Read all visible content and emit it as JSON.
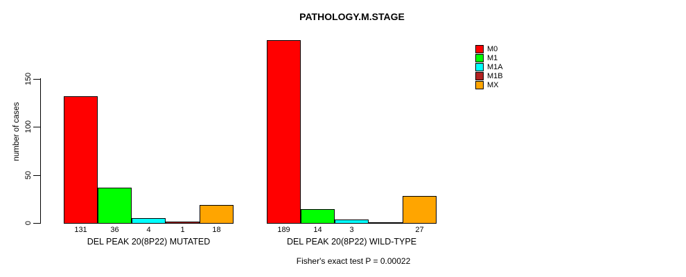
{
  "chart_data": {
    "type": "bar",
    "title": "PATHOLOGY.M.STAGE",
    "xlabel": "",
    "ylabel": "number of cases",
    "yticks": [
      0,
      50,
      100,
      150
    ],
    "ylim": [
      0,
      195
    ],
    "grid": false,
    "legend_position": "right",
    "legend": [
      {
        "name": "M0",
        "color": "#FF0000"
      },
      {
        "name": "M1",
        "color": "#00FF00"
      },
      {
        "name": "M1A",
        "color": "#00FFFF"
      },
      {
        "name": "M1B",
        "color": "#B22222"
      },
      {
        "name": "MX",
        "color": "#FFA500"
      }
    ],
    "categories": [
      "M0",
      "M1",
      "M1A",
      "M1B",
      "MX"
    ],
    "groups": [
      {
        "label": "DEL PEAK 20(8P22) MUTATED",
        "values": [
          131,
          36,
          4,
          1,
          18
        ]
      },
      {
        "label": "DEL PEAK 20(8P22) WILD-TYPE",
        "values": [
          189,
          14,
          3,
          0,
          27
        ]
      }
    ],
    "annotation": "Fisher's exact test P = 0.00022"
  }
}
